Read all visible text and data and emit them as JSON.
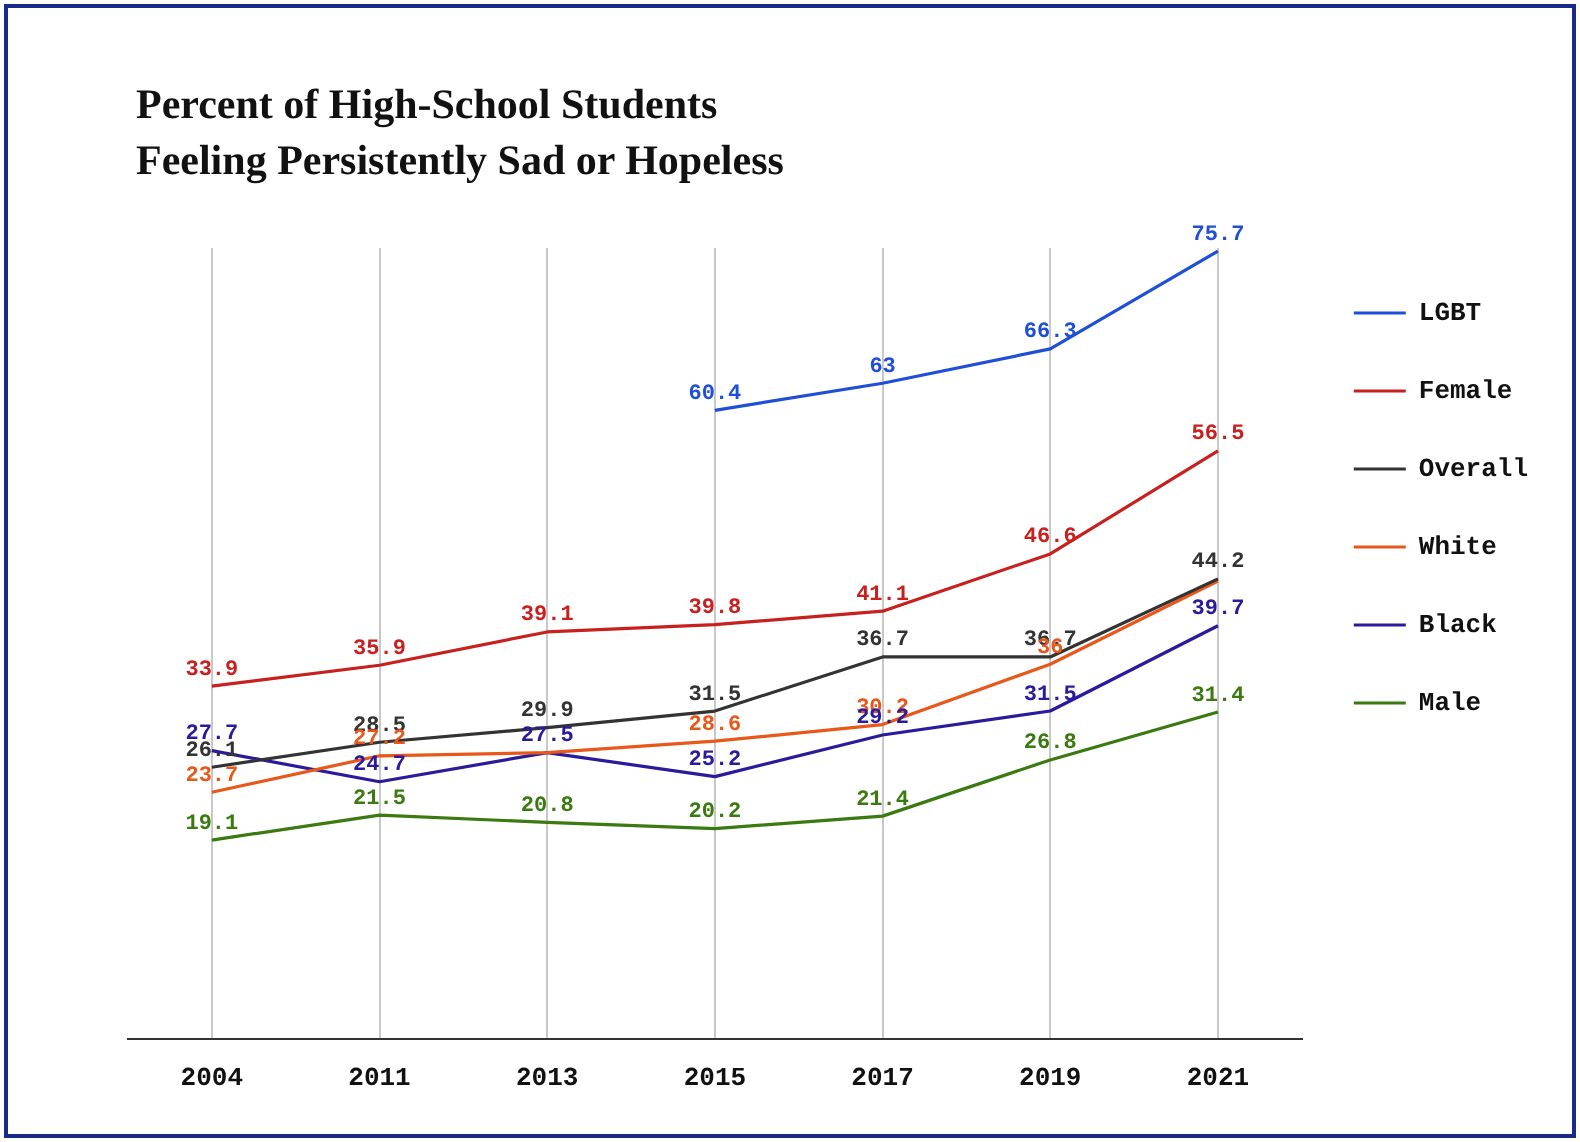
{
  "chart_data": {
    "type": "line",
    "title": "Percent of High-School Students Feeling Persistently Sad or Hopeless",
    "categories": [
      "2004",
      "2011",
      "2013",
      "2015",
      "2017",
      "2019",
      "2021"
    ],
    "series": [
      {
        "name": "LGBT",
        "color": "#1f4fd8",
        "values": [
          null,
          null,
          null,
          60.4,
          63,
          66.3,
          75.7
        ],
        "value_labels": [
          null,
          null,
          null,
          "60.4",
          "63",
          "66.3",
          "75.7"
        ]
      },
      {
        "name": "Female",
        "color": "#c8201e",
        "values": [
          33.9,
          35.9,
          39.1,
          39.8,
          41.1,
          46.6,
          56.5
        ],
        "value_labels": [
          "33.9",
          "35.9",
          "39.1",
          "39.8",
          "41.1",
          "46.6",
          "56.5"
        ]
      },
      {
        "name": "Overall",
        "color": "#333333",
        "values": [
          26.1,
          28.5,
          29.9,
          31.5,
          36.7,
          36.7,
          44.2
        ],
        "value_labels": [
          "26.1",
          "28.5",
          "29.9",
          "31.5",
          "36.7",
          "36.7",
          "44.2"
        ]
      },
      {
        "name": "White",
        "color": "#e8581a",
        "values": [
          23.7,
          27.2,
          27.5,
          28.6,
          30.2,
          36,
          44
        ],
        "value_labels": [
          "23.7",
          "27.2",
          null,
          "28.6",
          "30.2",
          "36",
          null
        ]
      },
      {
        "name": "Black",
        "color": "#2a1a9c",
        "values": [
          27.7,
          24.7,
          27.5,
          25.2,
          29.2,
          31.5,
          39.7
        ],
        "value_labels": [
          "27.7",
          "24.7",
          "27.5",
          "25.2",
          "29.2",
          "31.5",
          "39.7"
        ]
      },
      {
        "name": "Male",
        "color": "#3a7a10",
        "values": [
          19.1,
          21.5,
          20.8,
          20.2,
          21.4,
          26.8,
          31.4
        ],
        "value_labels": [
          "19.1",
          "21.5",
          "20.8",
          "20.2",
          "21.4",
          "26.8",
          "31.4"
        ]
      }
    ],
    "ylim": [
      0,
      76
    ],
    "tick_labels": "x",
    "grid": "x",
    "legend": "right",
    "marker": "none",
    "line_style": "solid"
  }
}
